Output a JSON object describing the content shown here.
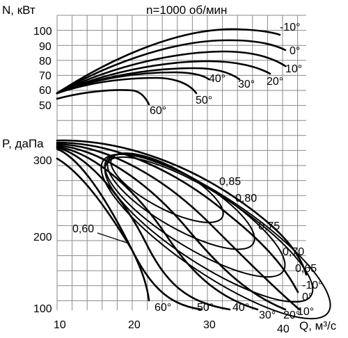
{
  "chart_data": {
    "type": "line",
    "title": "n=1000 об/мин",
    "xlabel": "Q, м³/с",
    "x_ticks": [
      "10",
      "20",
      "30",
      "40"
    ],
    "xlim": [
      10,
      40
    ],
    "grid": true,
    "power_panel": {
      "ylabel": "N, кВт",
      "y_ticks": [
        "100",
        "90",
        "80",
        "70",
        "60",
        "50"
      ],
      "ylim": [
        50,
        105
      ],
      "series": [
        {
          "name": "-10°",
          "x": [
            10,
            15,
            20,
            25,
            30,
            35,
            38
          ],
          "y": [
            58,
            73,
            84,
            92,
            98,
            102,
            100
          ]
        },
        {
          "name": "0°",
          "x": [
            10,
            15,
            20,
            25,
            30,
            35,
            38
          ],
          "y": [
            58,
            70,
            80,
            87,
            91,
            94,
            92
          ]
        },
        {
          "name": "10°",
          "x": [
            10,
            15,
            20,
            25,
            30,
            35,
            38
          ],
          "y": [
            58,
            68,
            76,
            81,
            84,
            86,
            84
          ]
        },
        {
          "name": "20°",
          "x": [
            10,
            15,
            20,
            25,
            30,
            34
          ],
          "y": [
            58,
            66,
            72,
            76,
            79,
            76
          ]
        },
        {
          "name": "30°",
          "x": [
            10,
            15,
            20,
            25,
            29
          ],
          "y": [
            57,
            63,
            68,
            71,
            70
          ]
        },
        {
          "name": "40°",
          "x": [
            10,
            15,
            20,
            25
          ],
          "y": [
            57,
            62,
            65,
            66
          ]
        },
        {
          "name": "50°",
          "x": [
            10,
            15,
            20,
            24
          ],
          "y": [
            56,
            59,
            61,
            58
          ]
        },
        {
          "name": "60°",
          "x": [
            10,
            15,
            20,
            22
          ],
          "y": [
            54,
            55,
            55,
            53
          ]
        }
      ]
    },
    "pressure_panel": {
      "ylabel": "P, даПа",
      "y_ticks": [
        "300",
        "200",
        "100"
      ],
      "ylim": [
        100,
        330
      ],
      "series": [
        {
          "name": "-10°",
          "x": [
            10,
            20,
            30,
            35,
            38,
            40
          ],
          "y": [
            322,
            300,
            250,
            200,
            150,
            120
          ]
        },
        {
          "name": "0°",
          "x": [
            10,
            20,
            30,
            35,
            38,
            40
          ],
          "y": [
            320,
            295,
            240,
            190,
            140,
            108
          ]
        },
        {
          "name": "10°",
          "x": [
            10,
            20,
            30,
            35,
            38,
            40
          ],
          "y": [
            318,
            290,
            230,
            180,
            130,
            100
          ]
        },
        {
          "name": "20°",
          "x": [
            10,
            20,
            30,
            35,
            38
          ],
          "y": [
            316,
            280,
            215,
            165,
            105
          ]
        },
        {
          "name": "30°",
          "x": [
            10,
            20,
            30,
            34,
            36
          ],
          "y": [
            315,
            270,
            200,
            150,
            102
          ]
        },
        {
          "name": "40°",
          "x": [
            10,
            20,
            28,
            32,
            34
          ],
          "y": [
            313,
            255,
            190,
            145,
            103
          ]
        },
        {
          "name": "50°",
          "x": [
            10,
            18,
            25,
            28,
            30
          ],
          "y": [
            310,
            250,
            180,
            140,
            103
          ]
        },
        {
          "name": "60°",
          "x": [
            10,
            15,
            20,
            22,
            23
          ],
          "y": [
            300,
            260,
            195,
            140,
            103
          ]
        }
      ],
      "efficiency_labels": [
        "0,85",
        "0,80",
        "0,75",
        "0,70",
        "0,65",
        "0,60"
      ]
    }
  }
}
